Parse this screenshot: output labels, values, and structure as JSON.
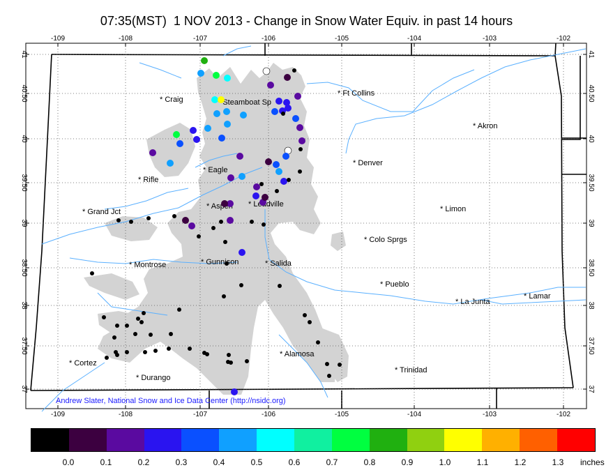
{
  "title": "07:35(MST)  1 NOV 2013 - Change in Snow Water Equiv. in past 14 hours",
  "credit": "Andrew Slater, National Snow and Ice Data Center (http://nsidc.org)",
  "axes": {
    "lon_ticks": [
      "-109",
      "-108",
      "-107",
      "-106",
      "-105",
      "-104",
      "-103",
      "-102"
    ],
    "lat_ticks": [
      "41",
      "40.50",
      "40",
      "39.50",
      "39",
      "38.50",
      "38",
      "37.50",
      "37"
    ]
  },
  "cities": [
    {
      "name": "Craig"
    },
    {
      "name": "Steamboat Sp"
    },
    {
      "name": "Ft Collins"
    },
    {
      "name": "Akron"
    },
    {
      "name": "Denver"
    },
    {
      "name": "Eagle"
    },
    {
      "name": "Rifle"
    },
    {
      "name": "Grand Jct"
    },
    {
      "name": "Aspen"
    },
    {
      "name": "Leadville"
    },
    {
      "name": "Limon"
    },
    {
      "name": "Colo Sprgs"
    },
    {
      "name": "Montrose"
    },
    {
      "name": "Gunnison"
    },
    {
      "name": "Salida"
    },
    {
      "name": "Pueblo"
    },
    {
      "name": "La Junta"
    },
    {
      "name": "Lamar"
    },
    {
      "name": "Alamosa"
    },
    {
      "name": "Cortez"
    },
    {
      "name": "Durango"
    },
    {
      "name": "Trinidad"
    }
  ],
  "legend": {
    "colors": [
      "#000000",
      "#3c0040",
      "#5a0aa0",
      "#2a14f0",
      "#0a50ff",
      "#10a0ff",
      "#00ffff",
      "#10f0a0",
      "#00ff40",
      "#20b010",
      "#90d010",
      "#ffff00",
      "#ffb000",
      "#ff6000",
      "#ff0000"
    ],
    "labels": [
      "0.0",
      "0.1",
      "0.2",
      "0.3",
      "0.4",
      "0.5",
      "0.6",
      "0.7",
      "0.8",
      "0.9",
      "1.0",
      "1.1",
      "1.2",
      "1.3"
    ],
    "units": "inches"
  },
  "stations": [
    {
      "c": "#20b010"
    },
    {
      "c": "#10a0ff"
    },
    {
      "c": "#00ff40"
    },
    {
      "c": "#00ffff"
    },
    {
      "c": "#00ffff"
    },
    {
      "c": "#ffff00"
    },
    {
      "c": "#10a0ff"
    },
    {
      "c": "#10a0ff"
    },
    {
      "c": "#10a0ff"
    },
    {
      "c": "#10a0ff"
    },
    {
      "c": "#10a0ff"
    },
    {
      "c": "#0a50ff"
    },
    {
      "c": "#00ff40"
    },
    {
      "c": "#2a14f0"
    },
    {
      "c": "#0a50ff"
    },
    {
      "c": "#2a14f0"
    },
    {
      "c": "#5a0aa0"
    },
    {
      "c": "#10a0ff"
    },
    {
      "c": "#ffffff"
    },
    {
      "c": "#000000"
    },
    {
      "c": "#3c0040"
    },
    {
      "c": "#5a0aa0"
    },
    {
      "c": "#5a0aa0"
    },
    {
      "c": "#2a14f0"
    },
    {
      "c": "#2a14f0"
    },
    {
      "c": "#2a14f0"
    },
    {
      "c": "#2a14f0"
    },
    {
      "c": "#0a50ff"
    },
    {
      "c": "#000000"
    },
    {
      "c": "#0a50ff"
    },
    {
      "c": "#5a0aa0"
    },
    {
      "c": "#5a0aa0"
    },
    {
      "c": "#ffffff"
    },
    {
      "c": "#000000"
    },
    {
      "c": "#5a0aa0"
    },
    {
      "c": "#3c0040"
    },
    {
      "c": "#0a50ff"
    },
    {
      "c": "#10a0ff"
    },
    {
      "c": "#0a50ff"
    },
    {
      "c": "#10a0ff"
    },
    {
      "c": "#5a0aa0"
    },
    {
      "c": "#2a14f0"
    },
    {
      "c": "#5a0aa0"
    },
    {
      "c": "#2a14f0"
    },
    {
      "c": "#5a0aa0"
    },
    {
      "c": "#3c0040"
    },
    {
      "c": "#5a0aa0"
    },
    {
      "c": "#3c0040"
    },
    {
      "c": "#5a0aa0"
    },
    {
      "c": "#3c0040"
    },
    {
      "c": "#5a0aa0"
    },
    {
      "c": "#000000"
    },
    {
      "c": "#000000"
    },
    {
      "c": "#000000"
    },
    {
      "c": "#000000"
    },
    {
      "c": "#000000"
    },
    {
      "c": "#000000"
    },
    {
      "c": "#000000"
    },
    {
      "c": "#000000"
    },
    {
      "c": "#000000"
    },
    {
      "c": "#000000"
    },
    {
      "c": "#000000"
    },
    {
      "c": "#000000"
    },
    {
      "c": "#000000"
    },
    {
      "c": "#000000"
    },
    {
      "c": "#2a14f0"
    },
    {
      "c": "#000000"
    },
    {
      "c": "#000000"
    },
    {
      "c": "#000000"
    },
    {
      "c": "#000000"
    },
    {
      "c": "#000000"
    },
    {
      "c": "#000000"
    },
    {
      "c": "#000000"
    },
    {
      "c": "#000000"
    },
    {
      "c": "#000000"
    },
    {
      "c": "#000000"
    },
    {
      "c": "#000000"
    },
    {
      "c": "#000000"
    },
    {
      "c": "#000000"
    },
    {
      "c": "#000000"
    },
    {
      "c": "#000000"
    },
    {
      "c": "#000000"
    },
    {
      "c": "#000000"
    },
    {
      "c": "#000000"
    },
    {
      "c": "#000000"
    },
    {
      "c": "#000000"
    },
    {
      "c": "#000000"
    },
    {
      "c": "#000000"
    },
    {
      "c": "#000000"
    },
    {
      "c": "#000000"
    },
    {
      "c": "#000000"
    },
    {
      "c": "#000000"
    },
    {
      "c": "#000000"
    },
    {
      "c": "#000000"
    },
    {
      "c": "#000000"
    },
    {
      "c": "#000000"
    },
    {
      "c": "#2a14f0"
    },
    {
      "c": "#000000"
    },
    {
      "c": "#000000"
    },
    {
      "c": "#000000"
    },
    {
      "c": "#000000"
    },
    {
      "c": "#000000"
    },
    {
      "c": "#000000"
    }
  ]
}
